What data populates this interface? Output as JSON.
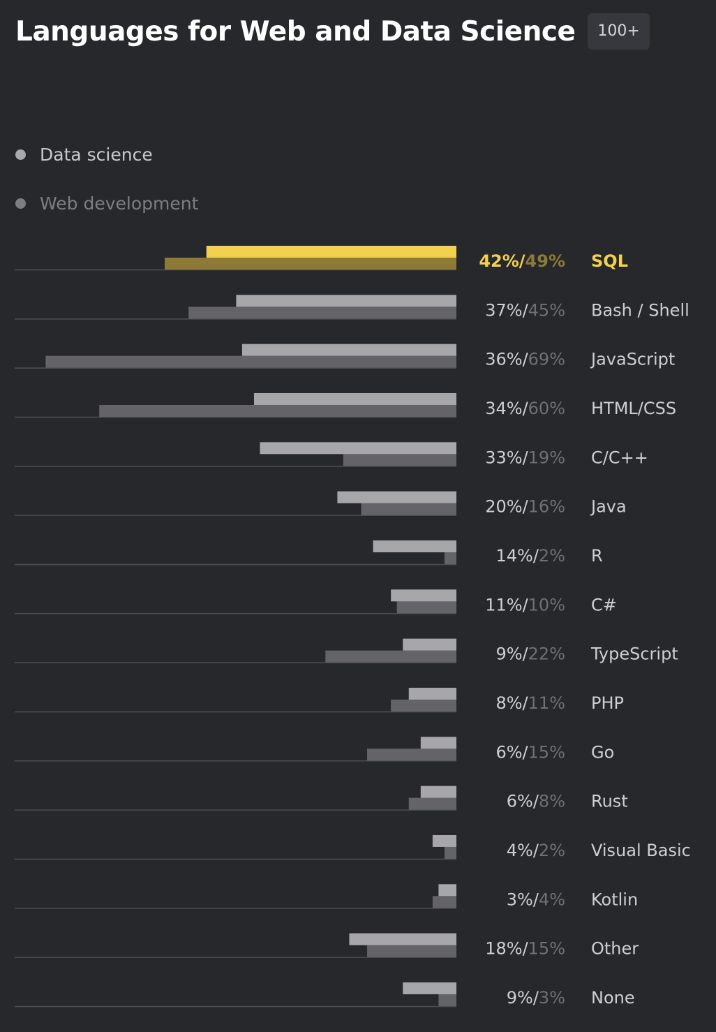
{
  "header": {
    "title": "Languages for Web and Data Science",
    "badge": "100+"
  },
  "legend": [
    {
      "label": "Data science",
      "active": true
    },
    {
      "label": "Web development",
      "active": false
    }
  ],
  "colors": {
    "background": "#27282c",
    "ds_bar": "#a7a7aa",
    "web_bar": "#646468",
    "highlight_ds": "#f3d04f",
    "highlight_web": "#8c7a36",
    "label_ds": "#cfcfd2",
    "label_web": "#6f7074",
    "baseline": "#4d4e53"
  },
  "chart_data": {
    "type": "bar",
    "orientation": "horizontal",
    "bars_grow_from": "right",
    "highlighted_category": "SQL",
    "categories": [
      "SQL",
      "Bash / Shell",
      "JavaScript",
      "HTML/CSS",
      "C/C++",
      "Java",
      "R",
      "C#",
      "TypeScript",
      "PHP",
      "Go",
      "Rust",
      "Visual Basic",
      "Kotlin",
      "Other",
      "None"
    ],
    "series": [
      {
        "name": "Data science",
        "values": [
          42,
          37,
          36,
          34,
          33,
          20,
          14,
          11,
          9,
          8,
          6,
          6,
          4,
          3,
          18,
          9
        ]
      },
      {
        "name": "Web development",
        "values": [
          49,
          45,
          69,
          60,
          19,
          16,
          2,
          10,
          22,
          11,
          15,
          8,
          2,
          4,
          15,
          3
        ]
      }
    ],
    "value_labels": [
      {
        "ds": "42%",
        "web": "49%"
      },
      {
        "ds": "37%",
        "web": "45%"
      },
      {
        "ds": "36%",
        "web": "69%"
      },
      {
        "ds": "34%",
        "web": "60%"
      },
      {
        "ds": "33%",
        "web": "19%"
      },
      {
        "ds": "20%",
        "web": "16%"
      },
      {
        "ds": "14%",
        "web": "2%"
      },
      {
        "ds": "11%",
        "web": "10%"
      },
      {
        "ds": "9%",
        "web": "22%"
      },
      {
        "ds": "8%",
        "web": "11%"
      },
      {
        "ds": "6%",
        "web": "15%"
      },
      {
        "ds": "6%",
        "web": "8%"
      },
      {
        "ds": "4%",
        "web": "2%"
      },
      {
        "ds": "3%",
        "web": "4%"
      },
      {
        "ds": "18%",
        "web": "15%"
      },
      {
        "ds": "9%",
        "web": "3%"
      }
    ],
    "xlim": [
      0,
      100
    ],
    "grid": false,
    "legend_position": "top-left"
  }
}
